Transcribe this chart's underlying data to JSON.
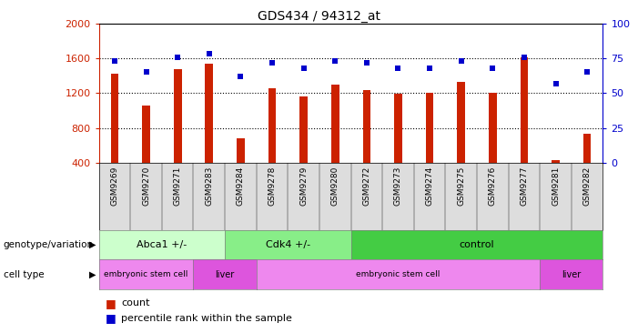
{
  "title": "GDS434 / 94312_at",
  "samples": [
    "GSM9269",
    "GSM9270",
    "GSM9271",
    "GSM9283",
    "GSM9284",
    "GSM9278",
    "GSM9279",
    "GSM9280",
    "GSM9272",
    "GSM9273",
    "GSM9274",
    "GSM9275",
    "GSM9276",
    "GSM9277",
    "GSM9281",
    "GSM9282"
  ],
  "counts": [
    1420,
    1060,
    1480,
    1540,
    680,
    1260,
    1160,
    1300,
    1240,
    1190,
    1200,
    1330,
    1210,
    1610,
    430,
    740
  ],
  "percentiles": [
    73,
    65,
    76,
    78,
    62,
    72,
    68,
    73,
    72,
    68,
    68,
    73,
    68,
    76,
    57,
    65
  ],
  "ylim_left": [
    400,
    2000
  ],
  "ylim_right": [
    0,
    100
  ],
  "yticks_left": [
    400,
    800,
    1200,
    1600,
    2000
  ],
  "yticks_right": [
    0,
    25,
    50,
    75,
    100
  ],
  "bar_color": "#cc2200",
  "dot_color": "#0000cc",
  "genotype_groups": [
    {
      "label": "Abca1 +/-",
      "start": 0,
      "end": 4,
      "color": "#ccffcc"
    },
    {
      "label": "Cdk4 +/-",
      "start": 4,
      "end": 8,
      "color": "#88ee88"
    },
    {
      "label": "control",
      "start": 8,
      "end": 16,
      "color": "#44cc44"
    }
  ],
  "celltype_groups": [
    {
      "label": "embryonic stem cell",
      "start": 0,
      "end": 3,
      "color": "#ee88ee"
    },
    {
      "label": "liver",
      "start": 3,
      "end": 5,
      "color": "#dd55dd"
    },
    {
      "label": "embryonic stem cell",
      "start": 5,
      "end": 14,
      "color": "#ee88ee"
    },
    {
      "label": "liver",
      "start": 14,
      "end": 16,
      "color": "#dd55dd"
    }
  ]
}
